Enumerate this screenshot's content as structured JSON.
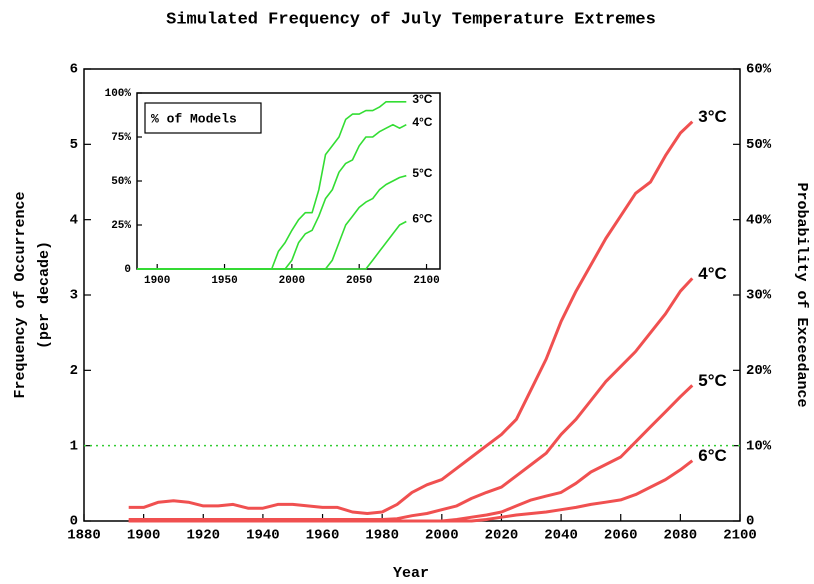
{
  "chart_data": [
    {
      "type": "line",
      "title": "Simulated Frequency of July Temperature Extremes",
      "xlabel": "Year",
      "ylabel": [
        "Frequency of Occurrence",
        "(per decade)"
      ],
      "y2label": "Probability of Exceedance",
      "xlim": [
        1880,
        2100
      ],
      "xticks": [
        1880,
        1900,
        1920,
        1940,
        1960,
        1980,
        2000,
        2020,
        2040,
        2060,
        2080,
        2100
      ],
      "ylim": [
        0,
        6
      ],
      "yticks": [
        0,
        1,
        2,
        3,
        4,
        5,
        6
      ],
      "y2lim": [
        0,
        60
      ],
      "y2ticks": [
        0,
        {
          "value": 10,
          "label": "10%"
        },
        {
          "value": 20,
          "label": "20%"
        },
        {
          "value": 30,
          "label": "30%"
        },
        {
          "value": 40,
          "label": "40%"
        },
        {
          "value": 50,
          "label": "50%"
        },
        {
          "value": 60,
          "label": "60%"
        }
      ],
      "hline": {
        "value": 1,
        "color": "#33cc33"
      },
      "x": [
        1895,
        1900,
        1905,
        1910,
        1915,
        1920,
        1925,
        1930,
        1935,
        1940,
        1945,
        1950,
        1955,
        1960,
        1965,
        1970,
        1975,
        1980,
        1985,
        1990,
        1995,
        2000,
        2005,
        2010,
        2015,
        2020,
        2025,
        2030,
        2035,
        2040,
        2045,
        2050,
        2055,
        2060,
        2065,
        2070,
        2075,
        2080,
        2084
      ],
      "series": [
        {
          "name": "3°C",
          "color": "#f05050",
          "values": [
            0.18,
            0.18,
            0.25,
            0.27,
            0.25,
            0.2,
            0.2,
            0.22,
            0.17,
            0.17,
            0.22,
            0.22,
            0.2,
            0.18,
            0.18,
            0.12,
            0.1,
            0.12,
            0.22,
            0.38,
            0.48,
            0.55,
            0.7,
            0.85,
            1.0,
            1.15,
            1.35,
            1.75,
            2.15,
            2.65,
            3.05,
            3.4,
            3.75,
            4.05,
            4.35,
            4.5,
            4.85,
            5.15,
            5.3
          ]
        },
        {
          "name": "4°C",
          "color": "#f05050",
          "values": [
            0.02,
            0.02,
            0.02,
            0.02,
            0.02,
            0.02,
            0.02,
            0.02,
            0.02,
            0.02,
            0.02,
            0.02,
            0.02,
            0.02,
            0.02,
            0.02,
            0.02,
            0.02,
            0.03,
            0.07,
            0.1,
            0.15,
            0.2,
            0.3,
            0.38,
            0.45,
            0.6,
            0.75,
            0.9,
            1.15,
            1.35,
            1.6,
            1.85,
            2.05,
            2.25,
            2.5,
            2.75,
            3.05,
            3.22
          ]
        },
        {
          "name": "5°C",
          "color": "#f05050",
          "values": [
            0,
            0,
            0,
            0,
            0,
            0,
            0,
            0,
            0,
            0,
            0,
            0,
            0,
            0,
            0,
            0,
            0,
            0,
            0,
            0,
            0,
            0,
            0.02,
            0.05,
            0.08,
            0.12,
            0.2,
            0.28,
            0.33,
            0.38,
            0.5,
            0.65,
            0.75,
            0.85,
            1.05,
            1.25,
            1.45,
            1.65,
            1.8
          ]
        },
        {
          "name": "6°C",
          "color": "#f05050",
          "values": [
            0,
            0,
            0,
            0,
            0,
            0,
            0,
            0,
            0,
            0,
            0,
            0,
            0,
            0,
            0,
            0,
            0,
            0,
            0,
            0,
            0,
            0,
            0,
            0,
            0.02,
            0.05,
            0.08,
            0.1,
            0.12,
            0.15,
            0.18,
            0.22,
            0.25,
            0.28,
            0.35,
            0.45,
            0.55,
            0.68,
            0.8
          ]
        }
      ]
    },
    {
      "type": "line",
      "box_label": "% of Models",
      "xlim": [
        1885,
        2110
      ],
      "xticks": [
        1900,
        1950,
        2000,
        2050,
        2100
      ],
      "ylim": [
        0,
        100
      ],
      "yticks": [
        0,
        {
          "value": 25,
          "label": "25%"
        },
        {
          "value": 50,
          "label": "50%"
        },
        {
          "value": 75,
          "label": "75%"
        },
        {
          "value": 100,
          "label": "100%"
        }
      ],
      "x": [
        1885,
        1985,
        1990,
        1995,
        2000,
        2005,
        2010,
        2015,
        2020,
        2025,
        2030,
        2035,
        2040,
        2045,
        2050,
        2055,
        2060,
        2065,
        2070,
        2075,
        2080,
        2085
      ],
      "series": [
        {
          "name": "3°C",
          "color": "#33dd33",
          "values": [
            0,
            0,
            10,
            15,
            22,
            28,
            32,
            32,
            45,
            65,
            70,
            75,
            85,
            88,
            88,
            90,
            90,
            92,
            95,
            95,
            95,
            95
          ]
        },
        {
          "name": "4°C",
          "color": "#33dd33",
          "values": [
            0,
            0,
            0,
            0,
            5,
            15,
            20,
            22,
            30,
            40,
            45,
            55,
            60,
            62,
            70,
            75,
            75,
            78,
            80,
            82,
            80,
            82
          ]
        },
        {
          "name": "5°C",
          "color": "#33dd33",
          "values": [
            0,
            0,
            0,
            0,
            0,
            0,
            0,
            0,
            0,
            0,
            5,
            15,
            25,
            30,
            35,
            38,
            40,
            45,
            48,
            50,
            52,
            53
          ]
        },
        {
          "name": "6°C",
          "color": "#33dd33",
          "values": [
            0,
            0,
            0,
            0,
            0,
            0,
            0,
            0,
            0,
            0,
            0,
            0,
            0,
            0,
            0,
            0,
            5,
            10,
            15,
            20,
            25,
            27
          ]
        }
      ]
    }
  ]
}
